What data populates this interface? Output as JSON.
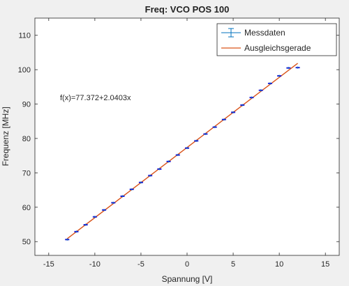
{
  "chart_data": {
    "type": "scatter",
    "title": "Freq: VCO POS 100",
    "xlabel": "Spannung [V]",
    "ylabel": "Frequenz [MHz]",
    "xlim": [
      -16.5,
      16.5
    ],
    "ylim": [
      46,
      115
    ],
    "xticks": [
      -15,
      -10,
      -5,
      0,
      5,
      10,
      15
    ],
    "yticks": [
      50,
      60,
      70,
      80,
      90,
      100,
      110
    ],
    "grid": false,
    "legend_position": "top-right",
    "annotation": "f(x)=77.372+2.0403x",
    "series": [
      {
        "name": "Messdaten",
        "kind": "errorbar",
        "color": "#0072BD",
        "marker_color": "#1f1fd6",
        "x": [
          -13,
          -12,
          -11,
          -10,
          -9,
          -8,
          -7,
          -6,
          -5,
          -4,
          -3,
          -2,
          -1,
          0,
          1,
          2,
          3,
          4,
          5,
          6,
          7,
          8,
          9,
          10,
          11,
          12
        ],
        "y": [
          50.6,
          52.9,
          54.9,
          57.2,
          59.2,
          61.3,
          63.2,
          65.2,
          67.2,
          69.2,
          71.1,
          73.3,
          75.2,
          77.2,
          79.3,
          81.3,
          83.3,
          85.5,
          87.6,
          89.7,
          91.9,
          94.0,
          96.0,
          98.2,
          100.5,
          100.6
        ]
      },
      {
        "name": "Ausgleichsgerade",
        "kind": "line",
        "color": "#D95319",
        "intercept": 77.372,
        "slope": 2.0403,
        "x_range": [
          -13,
          12
        ]
      }
    ]
  }
}
